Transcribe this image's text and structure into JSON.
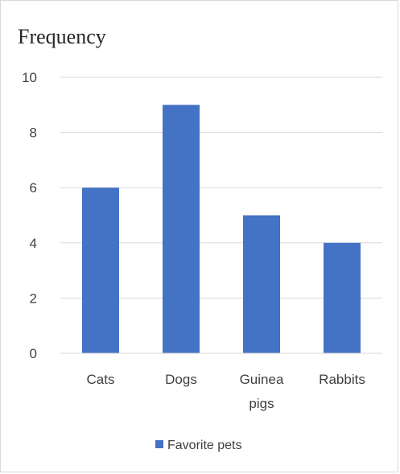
{
  "chart_data": {
    "type": "bar",
    "title": "Frequency",
    "categories": [
      "Cats",
      "Dogs",
      "Guinea pigs",
      "Rabbits"
    ],
    "series": [
      {
        "name": "Favorite pets",
        "values": [
          6,
          9,
          5,
          4
        ],
        "color": "#4472C4"
      }
    ],
    "yticks": [
      "0",
      "2",
      "4",
      "6",
      "8",
      "10"
    ],
    "ylim": [
      0,
      10
    ],
    "grid": true,
    "legend_position": "bottom"
  }
}
